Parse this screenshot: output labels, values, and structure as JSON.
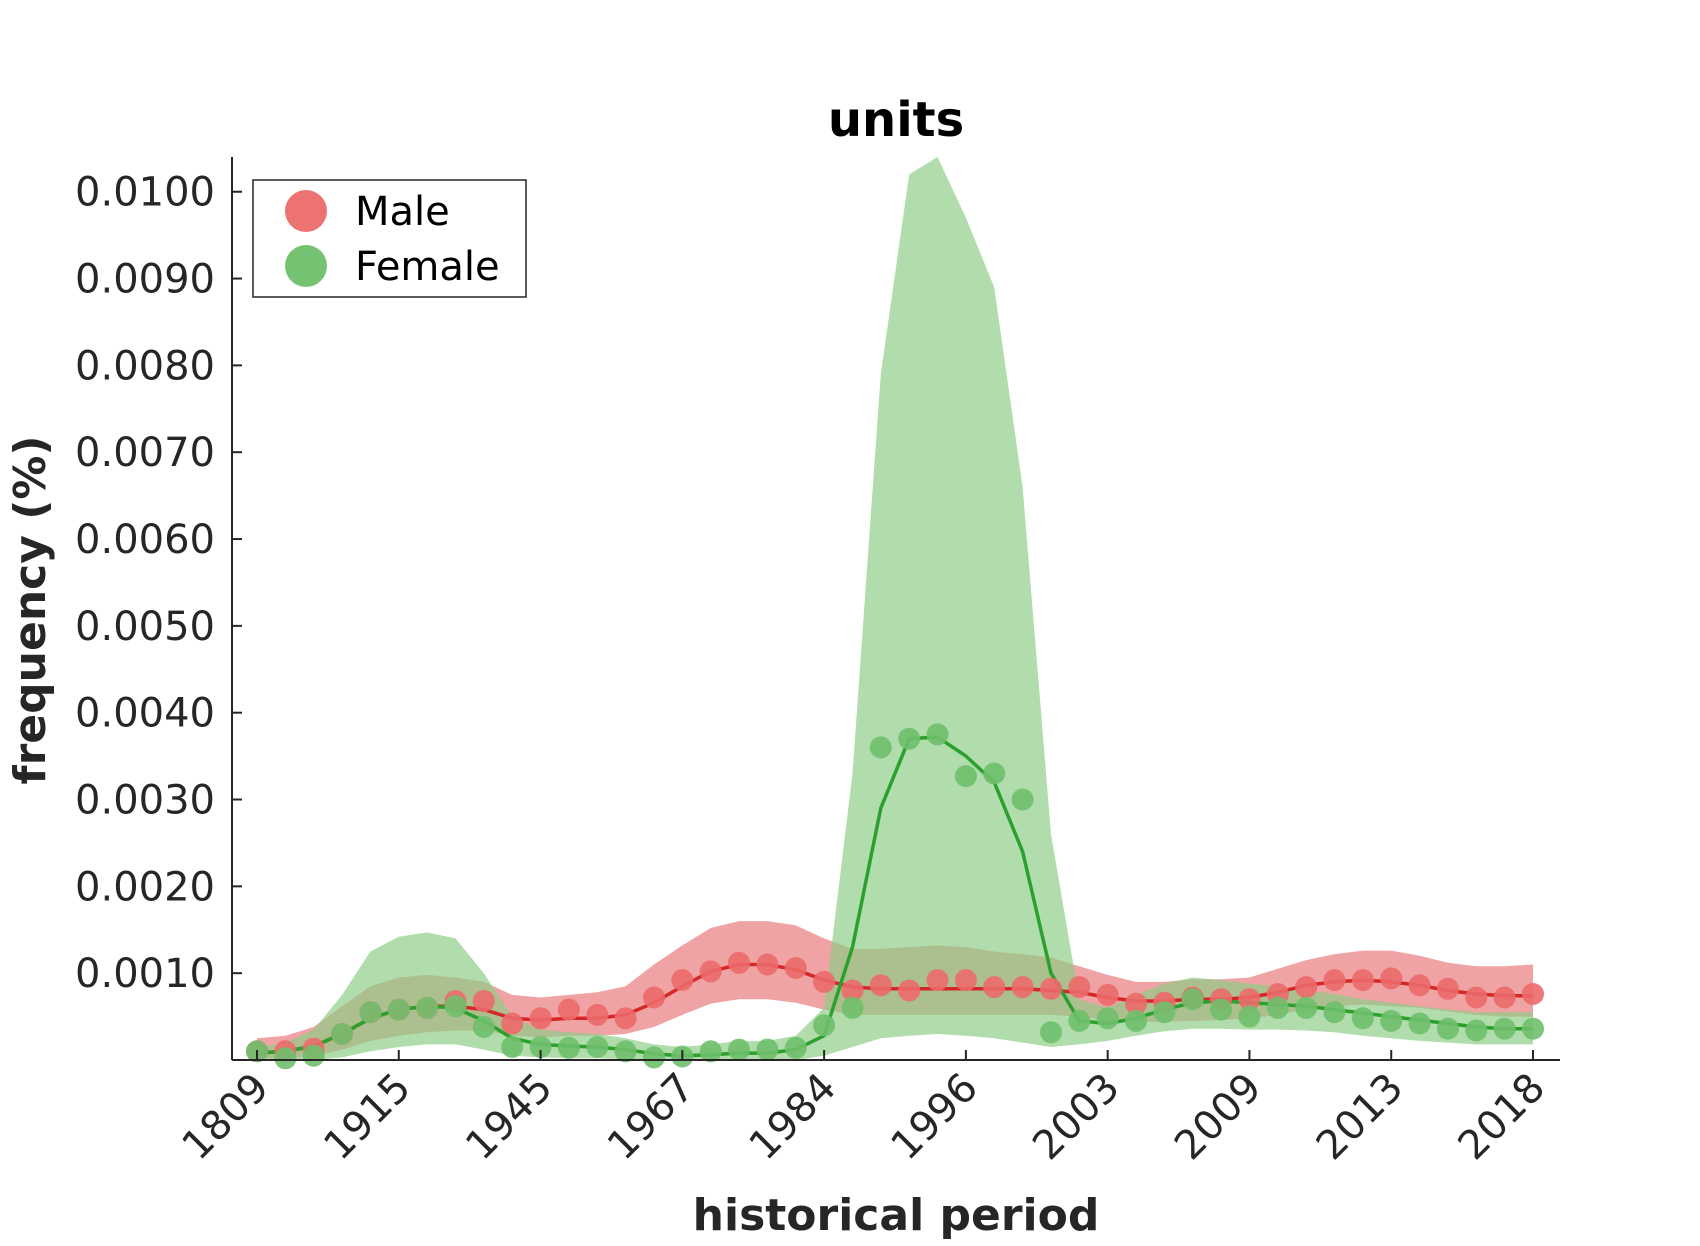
{
  "chart_data": {
    "type": "line",
    "title": "units",
    "xlabel": "historical period",
    "ylabel": "frequency (%)",
    "categories": [
      "1809",
      "1915",
      "1945",
      "1967",
      "1984",
      "1996",
      "2003",
      "2009",
      "2013",
      "2018"
    ],
    "x_index_range": [
      0,
      45
    ],
    "tick_indices": [
      0,
      5,
      10,
      15,
      20,
      25,
      30,
      35,
      40,
      45
    ],
    "yticks": [
      0.001,
      0.002,
      0.003,
      0.004,
      0.005,
      0.006,
      0.007,
      0.008,
      0.009,
      0.01
    ],
    "ytick_labels": [
      "0.0010",
      "0.0020",
      "0.0030",
      "0.0040",
      "0.0050",
      "0.0060",
      "0.0070",
      "0.0080",
      "0.0090",
      "0.0100"
    ],
    "ylim": [
      0,
      0.0104
    ],
    "grid": false,
    "legend_position": "top-left",
    "series": [
      {
        "name": "Male",
        "color": "#d62728",
        "marker_color": "#ec6a6a",
        "band_color": "#e9787a",
        "points": [
          0.0001,
          0.0001,
          0.00013,
          0.0003,
          0.00055,
          0.00058,
          0.0006,
          0.00068,
          0.00068,
          0.00042,
          0.00048,
          0.00058,
          0.00052,
          0.00048,
          0.00072,
          0.00092,
          0.00102,
          0.00112,
          0.0011,
          0.00106,
          0.0009,
          0.0008,
          0.00086,
          0.0008,
          0.00092,
          0.00092,
          0.00084,
          0.00084,
          0.00082,
          0.00084,
          0.00075,
          0.00065,
          0.00066,
          0.00072,
          0.0007,
          0.0007,
          0.00076,
          0.00084,
          0.00092,
          0.00092,
          0.00094,
          0.00086,
          0.00082,
          0.00072,
          0.00072,
          0.00076
        ],
        "line": [
          8e-05,
          0.0001,
          0.00016,
          0.0003,
          0.00048,
          0.00058,
          0.00062,
          0.00062,
          0.00058,
          0.00048,
          0.00046,
          0.00048,
          0.00048,
          0.00052,
          0.00066,
          0.00085,
          0.00102,
          0.0011,
          0.0011,
          0.00104,
          0.00092,
          0.00084,
          0.00082,
          0.00082,
          0.00082,
          0.00082,
          0.00082,
          0.00082,
          0.0008,
          0.00078,
          0.00072,
          0.00068,
          0.00068,
          0.0007,
          0.0007,
          0.00072,
          0.00078,
          0.00086,
          0.0009,
          0.00092,
          0.0009,
          0.00086,
          0.0008,
          0.00076,
          0.00074,
          0.00074
        ],
        "band_upper": [
          0.00025,
          0.00028,
          0.00038,
          0.00062,
          0.00085,
          0.00095,
          0.00098,
          0.00095,
          0.0009,
          0.00075,
          0.00072,
          0.00075,
          0.00078,
          0.00085,
          0.0011,
          0.00132,
          0.00152,
          0.0016,
          0.0016,
          0.00155,
          0.0014,
          0.00128,
          0.00128,
          0.0013,
          0.00132,
          0.0013,
          0.00125,
          0.00122,
          0.00118,
          0.00108,
          0.00098,
          0.0009,
          0.0009,
          0.00093,
          0.00093,
          0.00095,
          0.00105,
          0.00115,
          0.00122,
          0.00126,
          0.00126,
          0.0012,
          0.00112,
          0.00108,
          0.00108,
          0.0011
        ],
        "band_lower": [
          2e-05,
          2e-05,
          4e-05,
          0.00012,
          0.00022,
          0.00028,
          0.00032,
          0.00034,
          0.00034,
          0.00028,
          0.00026,
          0.00028,
          0.00028,
          0.0003,
          0.00038,
          0.00052,
          0.00065,
          0.0007,
          0.0007,
          0.00066,
          0.00058,
          0.00052,
          0.00052,
          0.00052,
          0.00052,
          0.00052,
          0.00052,
          0.00052,
          0.00052,
          0.0005,
          0.00046,
          0.00044,
          0.00044,
          0.00045,
          0.00046,
          0.00048,
          0.00052,
          0.00058,
          0.00062,
          0.00064,
          0.00062,
          0.0006,
          0.00056,
          0.00052,
          0.0005,
          0.0005
        ]
      },
      {
        "name": "Female",
        "color": "#2ca02c",
        "marker_color": "#6fbf6c",
        "band_color": "#8ccd85",
        "points": [
          0.0001,
          2e-05,
          5e-05,
          0.0003,
          0.00055,
          0.00058,
          0.0006,
          0.00062,
          0.00038,
          0.00015,
          0.00015,
          0.00014,
          0.00015,
          0.0001,
          3e-05,
          4e-05,
          0.0001,
          0.00012,
          0.00012,
          0.00014,
          0.0004,
          0.0006,
          0.0036,
          0.0037,
          0.00375,
          0.00327,
          0.0033,
          0.003,
          0.00032,
          0.00045,
          0.00048,
          0.00045,
          0.00055,
          0.0007,
          0.00058,
          0.0005,
          0.0006,
          0.0006,
          0.00055,
          0.00048,
          0.00045,
          0.00042,
          0.00036,
          0.00034,
          0.00036,
          0.00036
        ],
        "line": [
          8e-05,
          0.0001,
          0.00016,
          0.0003,
          0.00048,
          0.00058,
          0.00062,
          0.0006,
          0.00045,
          0.00025,
          0.00018,
          0.00016,
          0.00015,
          0.00012,
          7e-05,
          5e-05,
          6e-05,
          8e-05,
          8e-05,
          0.00012,
          0.00028,
          0.0013,
          0.0029,
          0.0037,
          0.00372,
          0.0035,
          0.0032,
          0.0024,
          0.001,
          0.00045,
          0.00042,
          0.00048,
          0.00058,
          0.00066,
          0.00068,
          0.00066,
          0.00064,
          0.00062,
          0.00058,
          0.00054,
          0.0005,
          0.00046,
          0.00042,
          0.00038,
          0.00036,
          0.00036
        ],
        "band_upper": [
          0.00015,
          0.0002,
          0.00035,
          0.00075,
          0.00125,
          0.00142,
          0.00147,
          0.0014,
          0.001,
          0.0005,
          0.00035,
          0.00032,
          0.0003,
          0.00025,
          0.00018,
          0.00015,
          0.00018,
          0.00022,
          0.00022,
          0.00028,
          0.0006,
          0.0033,
          0.0079,
          0.0102,
          0.0104,
          0.0097,
          0.0089,
          0.0066,
          0.0026,
          0.0007,
          0.0006,
          0.00075,
          0.00088,
          0.00095,
          0.00092,
          0.00088,
          0.00085,
          0.0008,
          0.00076,
          0.0007,
          0.00066,
          0.00062,
          0.00058,
          0.00055,
          0.00055,
          0.00055
        ],
        "band_lower": [
          0.0,
          0.0,
          0.0,
          3e-05,
          0.0001,
          0.00015,
          0.00018,
          0.00018,
          0.00012,
          5e-05,
          3e-05,
          2e-05,
          2e-05,
          1e-05,
          0.0,
          0.0,
          0.0,
          0.0,
          0.0,
          0.0,
          5e-05,
          0.00015,
          0.00025,
          0.00028,
          0.0003,
          0.00028,
          0.00025,
          0.0002,
          0.00015,
          0.00018,
          0.00022,
          0.00028,
          0.00033,
          0.00036,
          0.00036,
          0.00035,
          0.00035,
          0.00034,
          0.00032,
          0.00028,
          0.00025,
          0.00022,
          0.0002,
          0.00018,
          0.00018,
          0.00018
        ]
      }
    ]
  }
}
